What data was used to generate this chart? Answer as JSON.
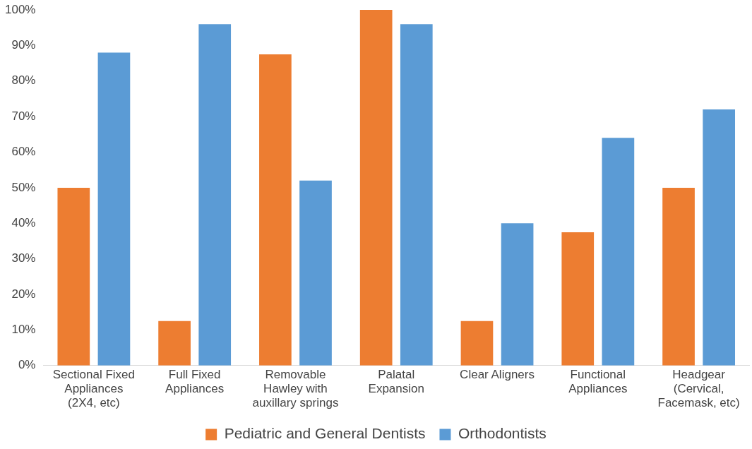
{
  "chart_data": {
    "type": "bar",
    "categories": [
      "Sectional Fixed Appliances (2X4, etc)",
      "Full Fixed Appliances",
      "Removable Hawley with auxillary springs",
      "Palatal Expansion",
      "Clear Aligners",
      "Functional Appliances",
      "Headgear (Cervical, Facemask, etc)"
    ],
    "series": [
      {
        "name": "Pediatric and General Dentists",
        "color": "#ed7d31",
        "values": [
          50,
          12.5,
          87.5,
          100,
          12.5,
          37.5,
          50
        ]
      },
      {
        "name": "Orthodontists",
        "color": "#5b9bd5",
        "values": [
          88,
          96,
          52,
          96,
          40,
          64,
          72
        ]
      }
    ],
    "ylim": [
      0,
      100
    ],
    "yticks": [
      {
        "value": 0,
        "label": "0%"
      },
      {
        "value": 10,
        "label": "10%"
      },
      {
        "value": 20,
        "label": "20%"
      },
      {
        "value": 30,
        "label": "30%"
      },
      {
        "value": 40,
        "label": "40%"
      },
      {
        "value": 50,
        "label": "50%"
      },
      {
        "value": 60,
        "label": "60%"
      },
      {
        "value": 70,
        "label": "70%"
      },
      {
        "value": 80,
        "label": "80%"
      },
      {
        "value": 90,
        "label": "90%"
      },
      {
        "value": 100,
        "label": "100%"
      }
    ],
    "grid": false,
    "legend": "bottom"
  }
}
